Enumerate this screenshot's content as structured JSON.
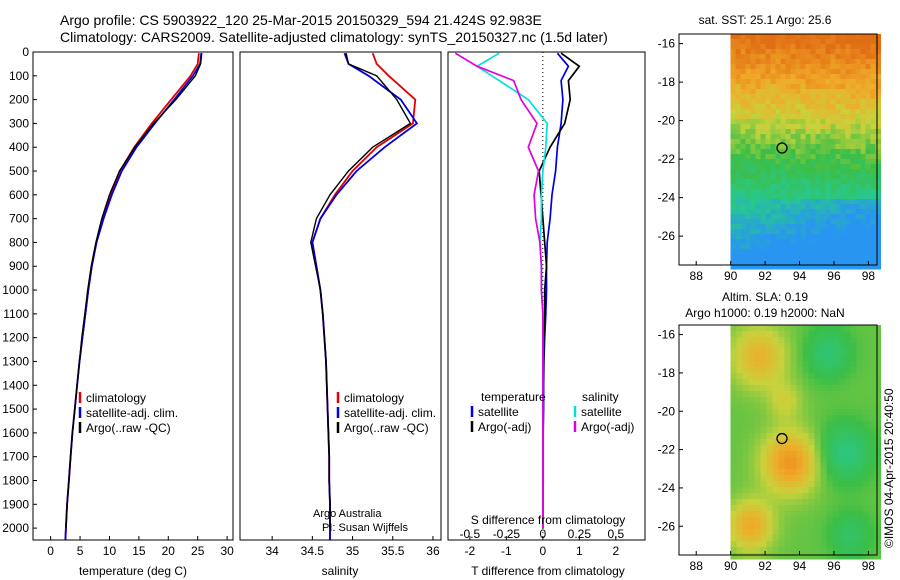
{
  "header": {
    "line1": "Argo profile: CS 5903922_120 25-Mar-2015 20150329_594 21.424S 92.983E",
    "line2": "Climatology: CARS2009. Satellite-adjusted climatology: synTS_20150327.nc (1.5d later)"
  },
  "colors": {
    "climatology": "#e00000",
    "satellite": "#0000e0",
    "argo": "#000000",
    "sal_satellite": "#00e0e0",
    "sal_argo": "#e000e0"
  },
  "chart_data": [
    {
      "type": "line",
      "title": "",
      "xlabel": "temperature (deg C)",
      "ylabel": "",
      "xlim": [
        -3,
        31
      ],
      "ylim": [
        2050,
        0
      ],
      "y_reversed": true,
      "x_ticks": [
        "0",
        "5",
        "10",
        "15",
        "20",
        "25",
        "30"
      ],
      "y_ticks": [
        "0",
        "100",
        "200",
        "300",
        "400",
        "500",
        "600",
        "700",
        "800",
        "900",
        "1000",
        "1100",
        "1200",
        "1300",
        "1400",
        "1500",
        "1600",
        "1700",
        "1800",
        "1900",
        "2000"
      ],
      "legend": [
        "climatology",
        "satellite-adj. clim.",
        "Argo(..raw -QC)"
      ],
      "series": [
        {
          "name": "climatology",
          "x": [
            25.2,
            25.0,
            23.8,
            20.5,
            17.2,
            14.2,
            11.8,
            10.2,
            8.9,
            7.8,
            7.0,
            6.4,
            5.9,
            5.4,
            4.9,
            4.5,
            4.1,
            3.7,
            3.4,
            3.1,
            2.8,
            2.6,
            2.5
          ],
          "y": [
            5,
            50,
            100,
            200,
            300,
            400,
            500,
            600,
            700,
            800,
            900,
            1000,
            1100,
            1200,
            1300,
            1400,
            1500,
            1600,
            1700,
            1800,
            1900,
            2000,
            2050
          ]
        },
        {
          "name": "satellite-adj. clim.",
          "x": [
            25.6,
            25.4,
            24.2,
            21.0,
            17.7,
            14.6,
            12.1,
            10.4,
            9.0,
            7.8,
            7.0,
            6.4,
            5.9,
            5.4,
            4.9,
            4.5,
            4.1,
            3.7,
            3.4,
            3.1,
            2.8,
            2.6,
            2.5
          ],
          "y": [
            5,
            50,
            100,
            200,
            300,
            400,
            500,
            600,
            700,
            800,
            900,
            1000,
            1100,
            1200,
            1300,
            1400,
            1500,
            1600,
            1700,
            1800,
            1900,
            2000,
            2050
          ]
        },
        {
          "name": "Argo(..raw -QC)",
          "x": [
            25.7,
            25.5,
            24.6,
            21.3,
            17.5,
            14.3,
            11.7,
            10.0,
            8.7,
            7.7,
            6.9,
            6.3,
            5.8,
            5.3,
            4.9,
            4.5,
            4.1,
            3.7,
            3.4,
            3.1,
            2.8,
            2.6
          ],
          "y": [
            5,
            50,
            100,
            200,
            300,
            400,
            500,
            600,
            700,
            800,
            900,
            1000,
            1100,
            1200,
            1300,
            1400,
            1500,
            1600,
            1700,
            1800,
            1900,
            2000
          ]
        }
      ]
    },
    {
      "type": "line",
      "title": "",
      "xlabel": "salinity",
      "ylabel": "",
      "xlim": [
        33.6,
        36.1
      ],
      "ylim": [
        2050,
        0
      ],
      "y_reversed": true,
      "x_ticks": [
        "34",
        "34.5",
        "35",
        "35.5",
        "36"
      ],
      "legend": [
        "climatology",
        "satellite-adj. clim.",
        "Argo(..raw -QC)"
      ],
      "annotations": [
        "Argo Australia",
        "PI: Susan Wijffels"
      ],
      "series": [
        {
          "name": "climatology",
          "x": [
            35.25,
            35.3,
            35.45,
            35.78,
            35.75,
            35.3,
            35.0,
            34.78,
            34.6,
            34.5,
            34.55,
            34.6,
            34.63,
            34.65,
            34.67,
            34.68,
            34.69,
            34.7,
            34.71,
            34.71,
            34.72,
            34.72,
            34.72
          ],
          "y": [
            5,
            50,
            100,
            200,
            300,
            400,
            500,
            600,
            700,
            800,
            900,
            1000,
            1100,
            1200,
            1300,
            1400,
            1500,
            1600,
            1700,
            1800,
            1900,
            2000,
            2050
          ]
        },
        {
          "name": "satellite-adj. clim.",
          "x": [
            34.9,
            34.95,
            35.2,
            35.6,
            35.8,
            35.4,
            35.05,
            34.8,
            34.6,
            34.5,
            34.55,
            34.6,
            34.63,
            34.65,
            34.67,
            34.68,
            34.69,
            34.7,
            34.71,
            34.71,
            34.72,
            34.72,
            34.72
          ],
          "y": [
            5,
            50,
            100,
            200,
            300,
            400,
            500,
            600,
            700,
            800,
            900,
            1000,
            1100,
            1200,
            1300,
            1400,
            1500,
            1600,
            1700,
            1800,
            1900,
            2000,
            2050
          ]
        },
        {
          "name": "Argo(..raw -QC)",
          "x": [
            34.92,
            34.95,
            35.3,
            35.55,
            35.72,
            35.25,
            34.95,
            34.72,
            34.55,
            34.48,
            34.54,
            34.6,
            34.63,
            34.65,
            34.67,
            34.68,
            34.69,
            34.7,
            34.71,
            34.71,
            34.72,
            34.72
          ],
          "y": [
            5,
            50,
            100,
            200,
            300,
            400,
            500,
            600,
            700,
            800,
            900,
            1000,
            1100,
            1200,
            1300,
            1400,
            1500,
            1600,
            1700,
            1800,
            1900,
            2000
          ]
        }
      ]
    },
    {
      "type": "line",
      "title": "",
      "xlabel": "T difference from climatology",
      "xlabel_top": "S difference from climatology",
      "xlim_T": [
        -2.6,
        2.8
      ],
      "xlim_S": [
        -0.65,
        0.7
      ],
      "ylim": [
        2050,
        0
      ],
      "y_reversed": true,
      "x_ticks_T": [
        "-2",
        "-1",
        "0",
        "1",
        "2"
      ],
      "x_ticks_S": [
        "-0.5",
        "-0.25",
        "0",
        "0.25",
        "0.5"
      ],
      "legend": {
        "temperature_header": "temperature",
        "salinity_header": "salinity",
        "temperature": [
          "satellite",
          "Argo(-adj)"
        ],
        "salinity": [
          "satellite",
          "Argo(-adj)"
        ]
      },
      "series": [
        {
          "name": "temperature satellite",
          "x": [
            0.4,
            0.7,
            0.5,
            0.55,
            0.5,
            0.4,
            0.35,
            0.25,
            0.2,
            0.12,
            0.1,
            0.1,
            0.08,
            0.05,
            0.03,
            0.02,
            0.02,
            0.01,
            0.01,
            0.0
          ],
          "y": [
            5,
            60,
            120,
            200,
            300,
            400,
            500,
            600,
            700,
            800,
            900,
            1000,
            1100,
            1200,
            1300,
            1400,
            1500,
            1600,
            1800,
            2000
          ]
        },
        {
          "name": "temperature Argo(-adj)",
          "x": [
            0.5,
            1.0,
            0.7,
            0.75,
            0.6,
            0.2,
            -0.1,
            -0.05,
            0.0,
            0.05,
            0.1,
            0.05,
            0.05,
            0.03,
            0.02,
            0.01,
            0.01,
            0.0,
            0.0,
            0.0
          ],
          "y": [
            5,
            60,
            120,
            200,
            300,
            400,
            500,
            600,
            700,
            800,
            900,
            1000,
            1100,
            1200,
            1300,
            1400,
            1500,
            1600,
            1800,
            2000
          ]
        },
        {
          "name": "salinity satellite",
          "x": [
            -0.3,
            -0.45,
            -0.3,
            -0.1,
            0.03,
            0.02,
            0.0,
            -0.01,
            -0.01,
            -0.02,
            -0.01,
            -0.01,
            0.0,
            0.0,
            0.0,
            0.0,
            0.0,
            0.0,
            0.0,
            0.0
          ],
          "y": [
            5,
            60,
            120,
            200,
            300,
            400,
            500,
            600,
            700,
            800,
            900,
            1000,
            1100,
            1200,
            1300,
            1400,
            1500,
            1600,
            1800,
            2000
          ]
        },
        {
          "name": "salinity Argo(-adj)",
          "x": [
            -0.6,
            -0.45,
            -0.2,
            -0.15,
            -0.04,
            -0.1,
            -0.03,
            -0.06,
            -0.05,
            -0.02,
            -0.01,
            -0.01,
            0.0,
            0.0,
            0.0,
            0.0,
            0.0,
            0.0,
            0.0,
            0.0
          ],
          "y": [
            5,
            60,
            120,
            200,
            300,
            400,
            500,
            600,
            700,
            800,
            900,
            1000,
            1100,
            1200,
            1300,
            1400,
            1500,
            1600,
            1800,
            2000
          ]
        }
      ]
    },
    {
      "type": "heatmap",
      "title": "sat. SST: 25.1  Argo: 25.6",
      "xlim": [
        87,
        98.5
      ],
      "ylim": [
        -27.5,
        -15.5
      ],
      "x_ticks": [
        "88",
        "90",
        "92",
        "94",
        "96",
        "98"
      ],
      "y_ticks": [
        "-16",
        "-18",
        "-20",
        "-22",
        "-24",
        "-26"
      ],
      "data_extent": [
        90,
        98.5
      ],
      "marker": {
        "lon": 92.983,
        "lat": -21.424
      }
    },
    {
      "type": "heatmap",
      "title": "Altim. SLA: 0.19",
      "subtitle": "Argo h1000: 0.19 h2000: NaN",
      "xlim": [
        87,
        98.5
      ],
      "ylim": [
        -27.5,
        -15.5
      ],
      "x_ticks": [
        "88",
        "90",
        "92",
        "94",
        "96",
        "98"
      ],
      "y_ticks": [
        "-16",
        "-18",
        "-20",
        "-22",
        "-24",
        "-26"
      ],
      "data_extent": [
        90,
        98.5
      ],
      "marker": {
        "lon": 92.983,
        "lat": -21.424
      }
    }
  ],
  "watermark": "©IMOS 04-Apr-2015 20:40:50"
}
